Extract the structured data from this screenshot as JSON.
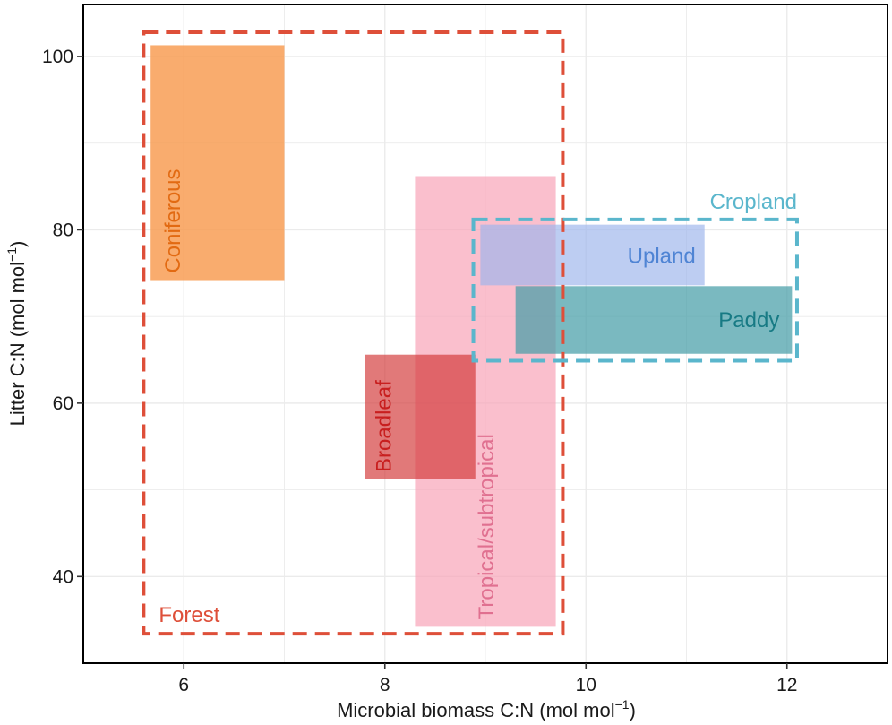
{
  "chart_data": {
    "type": "range-rectangles",
    "xlabel": "Microbial biomass C:N (mol mol",
    "ylabel": "Litter C:N (mol mol",
    "unit_superscript": "−1",
    "unit_close": ")",
    "xlim": [
      5,
      13
    ],
    "ylim": [
      30,
      106
    ],
    "xticks": [
      6,
      8,
      10,
      12
    ],
    "yticks": [
      40,
      60,
      80,
      100
    ],
    "grid": true,
    "legend": "none",
    "regions": [
      {
        "name": "Coniferous",
        "x": [
          5.67,
          7.0
        ],
        "y": [
          74.2,
          101.3
        ],
        "color": "#f89a4e",
        "opacity": 0.82,
        "label_color": "#e26a12"
      },
      {
        "name": "Tropical/subtropical",
        "x": [
          8.3,
          9.7
        ],
        "y": [
          34.2,
          86.2
        ],
        "color": "#f8a4b8",
        "opacity": 0.7,
        "label_color": "#e07090"
      },
      {
        "name": "Broadleaf",
        "x": [
          7.8,
          8.9
        ],
        "y": [
          51.2,
          65.6
        ],
        "color": "#d33a3a",
        "opacity": 0.68,
        "label_color": "#c81f1f"
      },
      {
        "name": "Upland",
        "x": [
          8.95,
          11.18
        ],
        "y": [
          73.6,
          80.6
        ],
        "color": "#9eb6ec",
        "opacity": 0.68,
        "label_color": "#4f84d4"
      },
      {
        "name": "Paddy",
        "x": [
          9.3,
          12.05
        ],
        "y": [
          65.7,
          73.5
        ],
        "color": "#479ea8",
        "opacity": 0.72,
        "label_color": "#177a84"
      }
    ],
    "groups": [
      {
        "name": "Forest",
        "x": [
          5.6,
          9.77
        ],
        "y": [
          33.4,
          102.8
        ],
        "color": "#de4f39"
      },
      {
        "name": "Cropland",
        "x": [
          8.88,
          12.1
        ],
        "y": [
          64.9,
          81.2
        ],
        "color": "#5ab6cc"
      }
    ]
  }
}
